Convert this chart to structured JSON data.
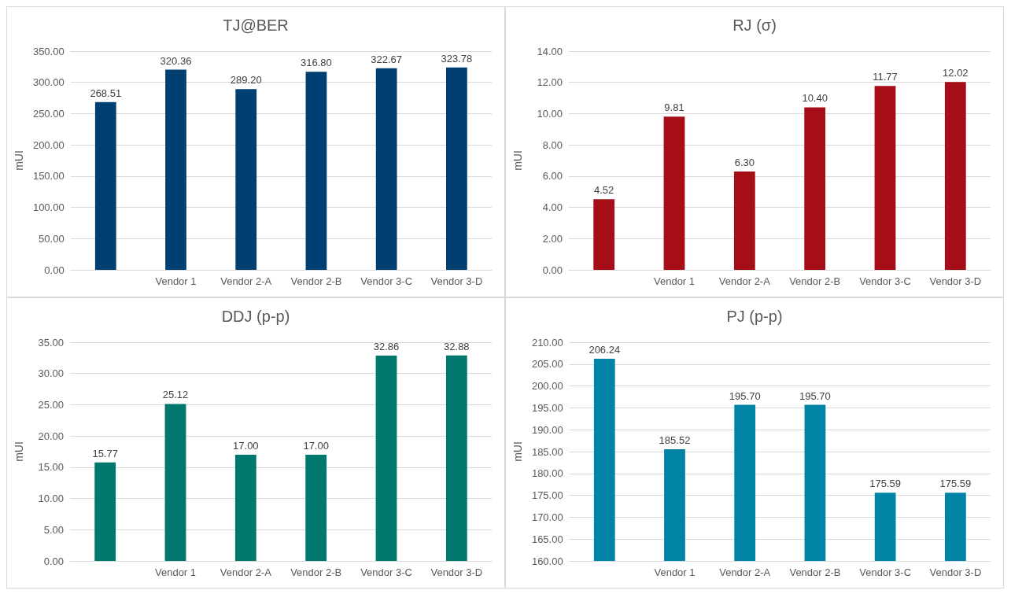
{
  "chart_data": [
    {
      "type": "bar",
      "title": "TJ@BER",
      "ylabel": "mUI",
      "categories": [
        null,
        "Vendor 1",
        "Vendor 2-A",
        "Vendor 2-B",
        "Vendor 3-C",
        "Vendor 3-D"
      ],
      "values": [
        268.51,
        320.36,
        289.2,
        316.8,
        322.67,
        323.78
      ],
      "value_labels": [
        "268.51",
        "320.36",
        "289.20",
        "316.80",
        "322.67",
        "323.78"
      ],
      "color": "#003f72",
      "ylim": [
        0,
        350
      ],
      "yticks": [
        {
          "value": 0,
          "label": "0.00"
        },
        {
          "value": 50,
          "label": "50.00"
        },
        {
          "value": 100,
          "label": "100.00"
        },
        {
          "value": 150,
          "label": "150.00"
        },
        {
          "value": 200,
          "label": "200.00"
        },
        {
          "value": 250,
          "label": "250.00"
        },
        {
          "value": 300,
          "label": "300.00"
        },
        {
          "value": 350,
          "label": "350.00"
        }
      ],
      "grid": "y"
    },
    {
      "type": "bar",
      "title": "RJ (σ)",
      "ylabel": "mUI",
      "categories": [
        null,
        "Vendor 1",
        "Vendor 2-A",
        "Vendor 2-B",
        "Vendor 3-C",
        "Vendor 3-D"
      ],
      "values": [
        4.52,
        9.81,
        6.3,
        10.4,
        11.77,
        12.02
      ],
      "value_labels": [
        "4.52",
        "9.81",
        "6.30",
        "10.40",
        "11.77",
        "12.02"
      ],
      "color": "#a50e16",
      "ylim": [
        0,
        14
      ],
      "yticks": [
        {
          "value": 0,
          "label": "0.00"
        },
        {
          "value": 2,
          "label": "2.00"
        },
        {
          "value": 4,
          "label": "4.00"
        },
        {
          "value": 6,
          "label": "6.00"
        },
        {
          "value": 8,
          "label": "8.00"
        },
        {
          "value": 10,
          "label": "10.00"
        },
        {
          "value": 12,
          "label": "12.00"
        },
        {
          "value": 14,
          "label": "14.00"
        }
      ],
      "grid": "y"
    },
    {
      "type": "bar",
      "title": "DDJ (p-p)",
      "ylabel": "mUI",
      "categories": [
        null,
        "Vendor 1",
        "Vendor 2-A",
        "Vendor 2-B",
        "Vendor 3-C",
        "Vendor 3-D"
      ],
      "values": [
        15.77,
        25.12,
        17.0,
        17.0,
        32.86,
        32.88
      ],
      "value_labels": [
        "15.77",
        "25.12",
        "17.00",
        "17.00",
        "32.86",
        "32.88"
      ],
      "color": "#00786e",
      "ylim": [
        0,
        35
      ],
      "yticks": [
        {
          "value": 0,
          "label": "0.00"
        },
        {
          "value": 5,
          "label": "5.00"
        },
        {
          "value": 10,
          "label": "10.00"
        },
        {
          "value": 15,
          "label": "15.00"
        },
        {
          "value": 20,
          "label": "20.00"
        },
        {
          "value": 25,
          "label": "25.00"
        },
        {
          "value": 30,
          "label": "30.00"
        },
        {
          "value": 35,
          "label": "35.00"
        }
      ],
      "grid": "y"
    },
    {
      "type": "bar",
      "title": "PJ (p-p)",
      "ylabel": "mUI",
      "categories": [
        null,
        "Vendor 1",
        "Vendor 2-A",
        "Vendor 2-B",
        "Vendor 3-C",
        "Vendor 3-D"
      ],
      "values": [
        206.24,
        185.52,
        195.7,
        195.7,
        175.59,
        175.59
      ],
      "value_labels": [
        "206.24",
        "185.52",
        "195.70",
        "195.70",
        "175.59",
        "175.59"
      ],
      "color": "#0083a4",
      "ylim": [
        160,
        210
      ],
      "yticks": [
        {
          "value": 160,
          "label": "160.00"
        },
        {
          "value": 165,
          "label": "165.00"
        },
        {
          "value": 170,
          "label": "170.00"
        },
        {
          "value": 175,
          "label": "175.00"
        },
        {
          "value": 180,
          "label": "180.00"
        },
        {
          "value": 185,
          "label": "185.00"
        },
        {
          "value": 190,
          "label": "190.00"
        },
        {
          "value": 195,
          "label": "195.00"
        },
        {
          "value": 200,
          "label": "200.00"
        },
        {
          "value": 205,
          "label": "205.00"
        },
        {
          "value": 210,
          "label": "210.00"
        }
      ],
      "grid": "y"
    }
  ]
}
